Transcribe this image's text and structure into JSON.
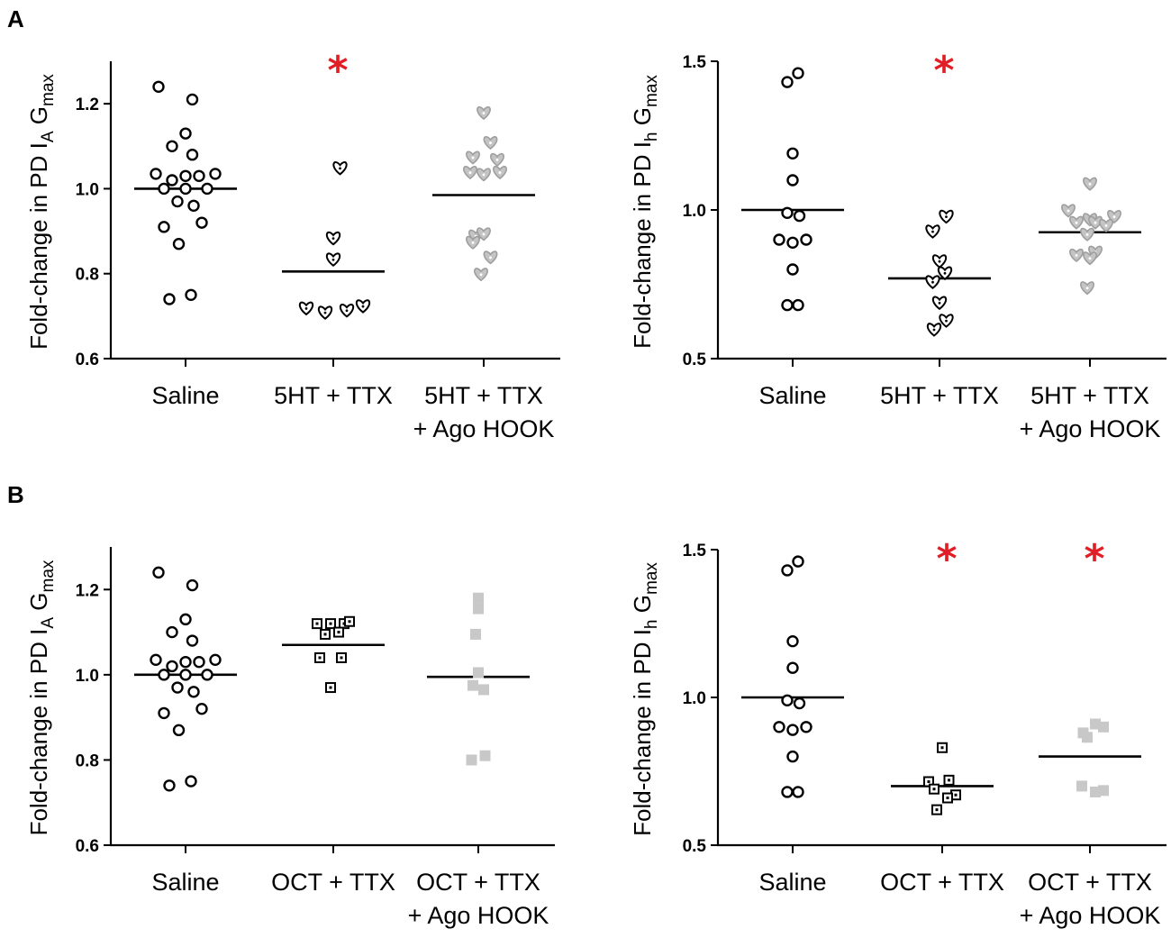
{
  "panels": {
    "A": {
      "label": "A"
    },
    "B": {
      "label": "B"
    }
  },
  "ylabels": {
    "ia": {
      "main": "Fold-change in PD I",
      "sub1": "A",
      "mid": " G",
      "sub2": "max"
    },
    "ih": {
      "main": "Fold-change in PD I",
      "sub1": "h",
      "mid": " G",
      "sub2": "max"
    }
  },
  "colors": {
    "black": "#000000",
    "gray_heart_fill": "#c4c4c4",
    "gray_heart_stroke": "#9e9e9e",
    "gray_square": "#c8c8c8",
    "star": "#e01e25"
  },
  "chart_data": [
    {
      "id": "A-left",
      "type": "scatter",
      "title": "",
      "ylabel": "Fold-change in PD I_A G_max",
      "ylim": [
        0.6,
        1.3
      ],
      "yticks": [
        0.6,
        0.8,
        1.0,
        1.2
      ],
      "ytick_labels": [
        "0.6",
        "0.8",
        "1.0",
        "1.2"
      ],
      "categories": [
        {
          "lines": [
            "Saline"
          ]
        },
        {
          "lines": [
            "5HT + TTX"
          ]
        },
        {
          "lines": [
            "5HT + TTX",
            "+ Ago HOOK"
          ]
        }
      ],
      "series": [
        {
          "name": "Saline",
          "marker": "circle-open",
          "mean": 1.0,
          "points": [
            [
              -0.2,
              1.24
            ],
            [
              0.05,
              1.21
            ],
            [
              0.0,
              1.13
            ],
            [
              -0.1,
              1.1
            ],
            [
              0.05,
              1.08
            ],
            [
              -0.22,
              1.035
            ],
            [
              -0.1,
              1.02
            ],
            [
              0.0,
              1.03
            ],
            [
              0.1,
              1.03
            ],
            [
              0.22,
              1.035
            ],
            [
              -0.16,
              1.0
            ],
            [
              0.0,
              1.0
            ],
            [
              0.16,
              1.0
            ],
            [
              -0.06,
              0.97
            ],
            [
              0.06,
              0.96
            ],
            [
              -0.16,
              0.91
            ],
            [
              0.12,
              0.92
            ],
            [
              -0.05,
              0.87
            ],
            [
              -0.12,
              0.74
            ],
            [
              0.04,
              0.75
            ]
          ]
        },
        {
          "name": "5HT + TTX",
          "marker": "heart-open",
          "mean": 0.805,
          "star": true,
          "points": [
            [
              0.05,
              1.05
            ],
            [
              0.0,
              0.885
            ],
            [
              0.0,
              0.835
            ],
            [
              -0.2,
              0.72
            ],
            [
              -0.06,
              0.71
            ],
            [
              0.1,
              0.715
            ],
            [
              0.22,
              0.725
            ]
          ]
        },
        {
          "name": "5HT + TTX + Ago HOOK",
          "marker": "heart-gray",
          "mean": 0.985,
          "points": [
            [
              0.0,
              1.18
            ],
            [
              0.05,
              1.11
            ],
            [
              -0.08,
              1.075
            ],
            [
              0.1,
              1.07
            ],
            [
              -0.1,
              1.04
            ],
            [
              0.0,
              1.035
            ],
            [
              0.12,
              1.04
            ],
            [
              -0.06,
              0.89
            ],
            [
              0.0,
              0.895
            ],
            [
              -0.08,
              0.875
            ],
            [
              0.05,
              0.84
            ],
            [
              -0.02,
              0.8
            ]
          ]
        }
      ]
    },
    {
      "id": "A-right",
      "type": "scatter",
      "title": "",
      "ylabel": "Fold-change in PD I_h G_max",
      "ylim": [
        0.5,
        1.5
      ],
      "yticks": [
        0.5,
        1.0,
        1.5
      ],
      "ytick_labels": [
        "0.5",
        "1.0",
        "1.5"
      ],
      "categories": [
        {
          "lines": [
            "Saline"
          ]
        },
        {
          "lines": [
            "5HT + TTX"
          ]
        },
        {
          "lines": [
            "5HT + TTX",
            "+ Ago HOOK"
          ]
        }
      ],
      "series": [
        {
          "name": "Saline",
          "marker": "circle-open",
          "mean": 1.0,
          "points": [
            [
              -0.04,
              1.43
            ],
            [
              0.04,
              1.46
            ],
            [
              0.0,
              1.19
            ],
            [
              0.0,
              1.1
            ],
            [
              -0.04,
              0.99
            ],
            [
              0.05,
              0.98
            ],
            [
              -0.1,
              0.9
            ],
            [
              0.0,
              0.89
            ],
            [
              0.1,
              0.9
            ],
            [
              0.0,
              0.8
            ],
            [
              -0.04,
              0.68
            ],
            [
              0.04,
              0.68
            ]
          ]
        },
        {
          "name": "5HT + TTX",
          "marker": "heart-open",
          "mean": 0.77,
          "star": true,
          "points": [
            [
              0.05,
              0.98
            ],
            [
              -0.05,
              0.93
            ],
            [
              0.0,
              0.83
            ],
            [
              0.04,
              0.79
            ],
            [
              -0.05,
              0.76
            ],
            [
              0.0,
              0.69
            ],
            [
              0.05,
              0.63
            ],
            [
              -0.04,
              0.6
            ]
          ]
        },
        {
          "name": "5HT + TTX + Ago HOOK",
          "marker": "heart-gray",
          "mean": 0.925,
          "points": [
            [
              0.0,
              1.09
            ],
            [
              -0.16,
              1.0
            ],
            [
              0.0,
              0.97
            ],
            [
              0.18,
              0.98
            ],
            [
              -0.1,
              0.96
            ],
            [
              0.04,
              0.96
            ],
            [
              0.12,
              0.95
            ],
            [
              -0.02,
              0.92
            ],
            [
              -0.1,
              0.85
            ],
            [
              0.04,
              0.86
            ],
            [
              0.0,
              0.84
            ],
            [
              -0.02,
              0.74
            ]
          ]
        }
      ]
    },
    {
      "id": "B-left",
      "type": "scatter",
      "title": "",
      "ylabel": "Fold-change in PD I_A G_max",
      "ylim": [
        0.6,
        1.3
      ],
      "yticks": [
        0.6,
        0.8,
        1.0,
        1.2
      ],
      "ytick_labels": [
        "0.6",
        "0.8",
        "1.0",
        "1.2"
      ],
      "categories": [
        {
          "lines": [
            "Saline"
          ]
        },
        {
          "lines": [
            "OCT + TTX"
          ]
        },
        {
          "lines": [
            "OCT + TTX",
            "+ Ago HOOK"
          ]
        }
      ],
      "series": [
        {
          "name": "Saline",
          "marker": "circle-open",
          "mean": 1.0,
          "points": [
            [
              -0.2,
              1.24
            ],
            [
              0.05,
              1.21
            ],
            [
              0.0,
              1.13
            ],
            [
              -0.1,
              1.1
            ],
            [
              0.05,
              1.08
            ],
            [
              -0.22,
              1.035
            ],
            [
              -0.1,
              1.02
            ],
            [
              0.0,
              1.03
            ],
            [
              0.1,
              1.03
            ],
            [
              0.22,
              1.035
            ],
            [
              -0.16,
              1.0
            ],
            [
              0.0,
              1.0
            ],
            [
              0.16,
              1.0
            ],
            [
              -0.06,
              0.97
            ],
            [
              0.06,
              0.96
            ],
            [
              -0.16,
              0.91
            ],
            [
              0.12,
              0.92
            ],
            [
              -0.05,
              0.87
            ],
            [
              -0.12,
              0.74
            ],
            [
              0.04,
              0.75
            ]
          ]
        },
        {
          "name": "OCT + TTX",
          "marker": "square-open",
          "mean": 1.07,
          "points": [
            [
              -0.12,
              1.12
            ],
            [
              -0.02,
              1.12
            ],
            [
              0.08,
              1.12
            ],
            [
              0.12,
              1.125
            ],
            [
              -0.06,
              1.095
            ],
            [
              0.04,
              1.1
            ],
            [
              -0.1,
              1.04
            ],
            [
              0.06,
              1.04
            ],
            [
              -0.02,
              0.97
            ]
          ]
        },
        {
          "name": "OCT + TTX + Ago HOOK",
          "marker": "square-gray",
          "mean": 0.995,
          "points": [
            [
              0.0,
              1.18
            ],
            [
              0.0,
              1.155
            ],
            [
              -0.02,
              1.095
            ],
            [
              0.0,
              1.005
            ],
            [
              -0.04,
              0.975
            ],
            [
              0.04,
              0.965
            ],
            [
              0.05,
              0.81
            ],
            [
              -0.05,
              0.8
            ]
          ]
        }
      ]
    },
    {
      "id": "B-right",
      "type": "scatter",
      "title": "",
      "ylabel": "Fold-change in PD I_h G_max",
      "ylim": [
        0.5,
        1.5
      ],
      "yticks": [
        0.5,
        1.0,
        1.5
      ],
      "ytick_labels": [
        "0.5",
        "1.0",
        "1.5"
      ],
      "categories": [
        {
          "lines": [
            "Saline"
          ]
        },
        {
          "lines": [
            "OCT + TTX"
          ]
        },
        {
          "lines": [
            "OCT + TTX",
            "+ Ago HOOK"
          ]
        }
      ],
      "series": [
        {
          "name": "Saline",
          "marker": "circle-open",
          "mean": 1.0,
          "points": [
            [
              -0.04,
              1.43
            ],
            [
              0.04,
              1.46
            ],
            [
              0.0,
              1.19
            ],
            [
              0.0,
              1.1
            ],
            [
              -0.04,
              0.99
            ],
            [
              0.05,
              0.98
            ],
            [
              -0.1,
              0.9
            ],
            [
              0.0,
              0.89
            ],
            [
              0.1,
              0.9
            ],
            [
              0.0,
              0.8
            ],
            [
              -0.04,
              0.68
            ],
            [
              0.04,
              0.68
            ]
          ]
        },
        {
          "name": "OCT + TTX",
          "marker": "square-open",
          "mean": 0.7,
          "star": true,
          "points": [
            [
              0.0,
              0.83
            ],
            [
              -0.1,
              0.715
            ],
            [
              0.05,
              0.72
            ],
            [
              -0.06,
              0.69
            ],
            [
              0.1,
              0.67
            ],
            [
              0.04,
              0.66
            ],
            [
              -0.04,
              0.62
            ]
          ]
        },
        {
          "name": "OCT + TTX + Ago HOOK",
          "marker": "square-gray",
          "mean": 0.8,
          "star": true,
          "points": [
            [
              -0.05,
              0.88
            ],
            [
              0.04,
              0.91
            ],
            [
              0.1,
              0.9
            ],
            [
              -0.02,
              0.865
            ],
            [
              -0.06,
              0.7
            ],
            [
              0.04,
              0.68
            ],
            [
              0.1,
              0.685
            ]
          ]
        }
      ]
    }
  ],
  "star_symbol": "*"
}
